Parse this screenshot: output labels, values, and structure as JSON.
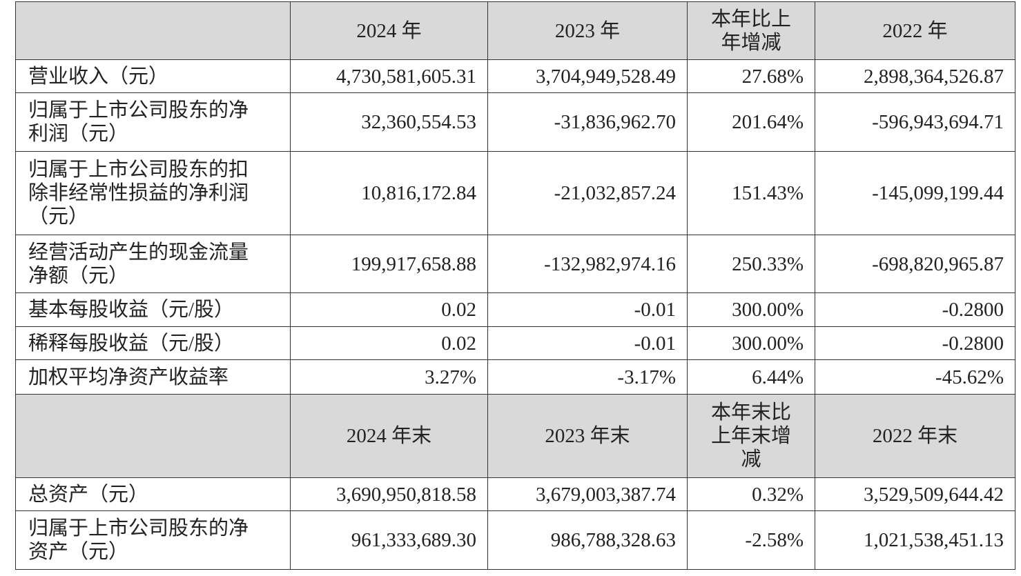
{
  "table": {
    "header": [
      "2024 年",
      "2023 年",
      "本年比上年增减",
      "2022 年"
    ],
    "rows": [
      [
        "营业收入（元）",
        "4,730,581,605.31",
        "3,704,949,528.49",
        "27.68%",
        "2,898,364,526.87"
      ],
      [
        "归属于上市公司股东的净利润（元）",
        "32,360,554.53",
        "-31,836,962.70",
        "201.64%",
        "-596,943,694.71"
      ],
      [
        "归属于上市公司股东的扣除非经常性损益的净利润（元）",
        "10,816,172.84",
        "-21,032,857.24",
        "151.43%",
        "-145,099,199.44"
      ],
      [
        "经营活动产生的现金流量净额（元）",
        "199,917,658.88",
        "-132,982,974.16",
        "250.33%",
        "-698,820,965.87"
      ],
      [
        "基本每股收益（元/股）",
        "0.02",
        "-0.01",
        "300.00%",
        "-0.2800"
      ],
      [
        "稀释每股收益（元/股）",
        "0.02",
        "-0.01",
        "300.00%",
        "-0.2800"
      ],
      [
        "加权平均净资产收益率",
        "3.27%",
        "-3.17%",
        "6.44%",
        "-45.62%"
      ]
    ],
    "header2": [
      "2024 年末",
      "2023 年末",
      "本年末比上年末增减",
      "2022 年末"
    ],
    "rows2": [
      [
        "总资产（元）",
        "3,690,950,818.58",
        "3,679,003,387.74",
        "0.32%",
        "3,529,509,644.42"
      ],
      [
        "归属于上市公司股东的净资产（元）",
        "961,333,689.30",
        "986,788,328.63",
        "-2.58%",
        "1,021,538,451.13"
      ]
    ]
  }
}
